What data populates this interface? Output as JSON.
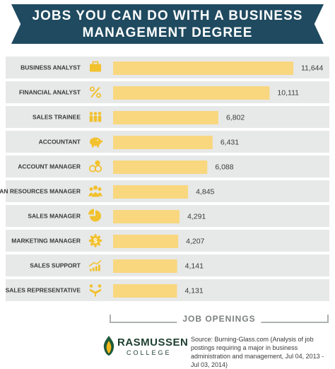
{
  "header": {
    "title_line1": "JOBS YOU CAN DO WITH A BUSINESS",
    "title_line2": "MANAGEMENT DEGREE"
  },
  "colors": {
    "banner": "#1f4a60",
    "row_bg": "#e7e8e8",
    "bar": "#f8d77f",
    "icon": "#f2c12e",
    "label": "#3a3a3a"
  },
  "chart_data": {
    "type": "bar",
    "orientation": "horizontal",
    "categories": [
      "BUSINESS ANALYST",
      "FINANCIAL ANALYST",
      "SALES TRAINEE",
      "ACCOUNTANT",
      "ACCOUNT MANAGER",
      "HUMAN RESOURCES MANAGER",
      "SALES MANAGER",
      "MARKETING MANAGER",
      "SALES SUPPORT",
      "SALES REPRESENTATIVE"
    ],
    "values": [
      11644,
      10111,
      6802,
      6431,
      6088,
      4845,
      4291,
      4207,
      4141,
      4131
    ],
    "value_labels": [
      "11,644",
      "10,111",
      "6,802",
      "6,431",
      "6,088",
      "4,845",
      "4,291",
      "4,207",
      "4,141",
      "4,131"
    ],
    "icons": [
      "briefcase-icon",
      "percent-icon",
      "people-icon",
      "piggy-bank-icon",
      "coins-icon",
      "group-icon",
      "pie-chart-icon",
      "dollar-gear-icon",
      "growth-chart-icon",
      "handshake-icon"
    ],
    "xlabel": "JOB OPENINGS",
    "xlim": [
      0,
      12000
    ],
    "grid": false,
    "legend": "none"
  },
  "footer": {
    "logo_name": "RASMUSSEN",
    "logo_sub": "COLLEGE",
    "source": "Source: Burning-Glass.com (Analysis of job postings requiring a major in business administration and management, Jul 04, 2013 - Jul 03, 2014)"
  }
}
